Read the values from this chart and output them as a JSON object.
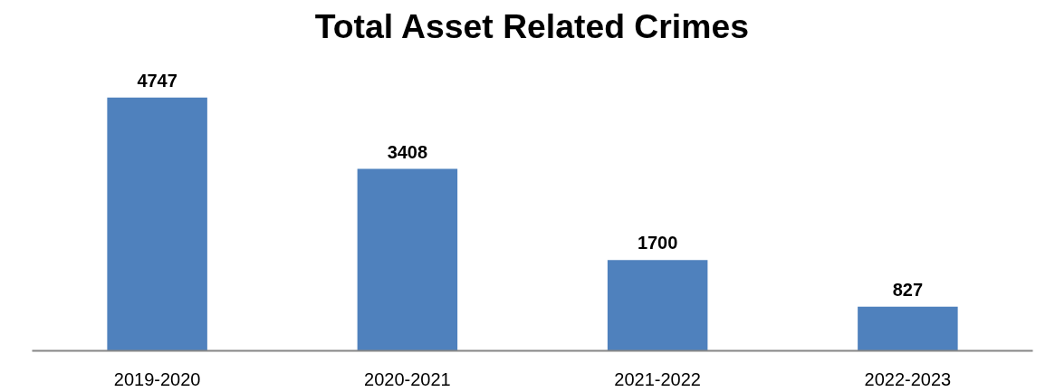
{
  "chart_data": {
    "type": "bar",
    "title": "Total Asset Related Crimes",
    "categories": [
      "2019-2020",
      "2020-2021",
      "2021-2022",
      "2022-2023"
    ],
    "values": [
      4747,
      3408,
      1700,
      827
    ],
    "color": "#4f81bd",
    "data_labels": true
  }
}
